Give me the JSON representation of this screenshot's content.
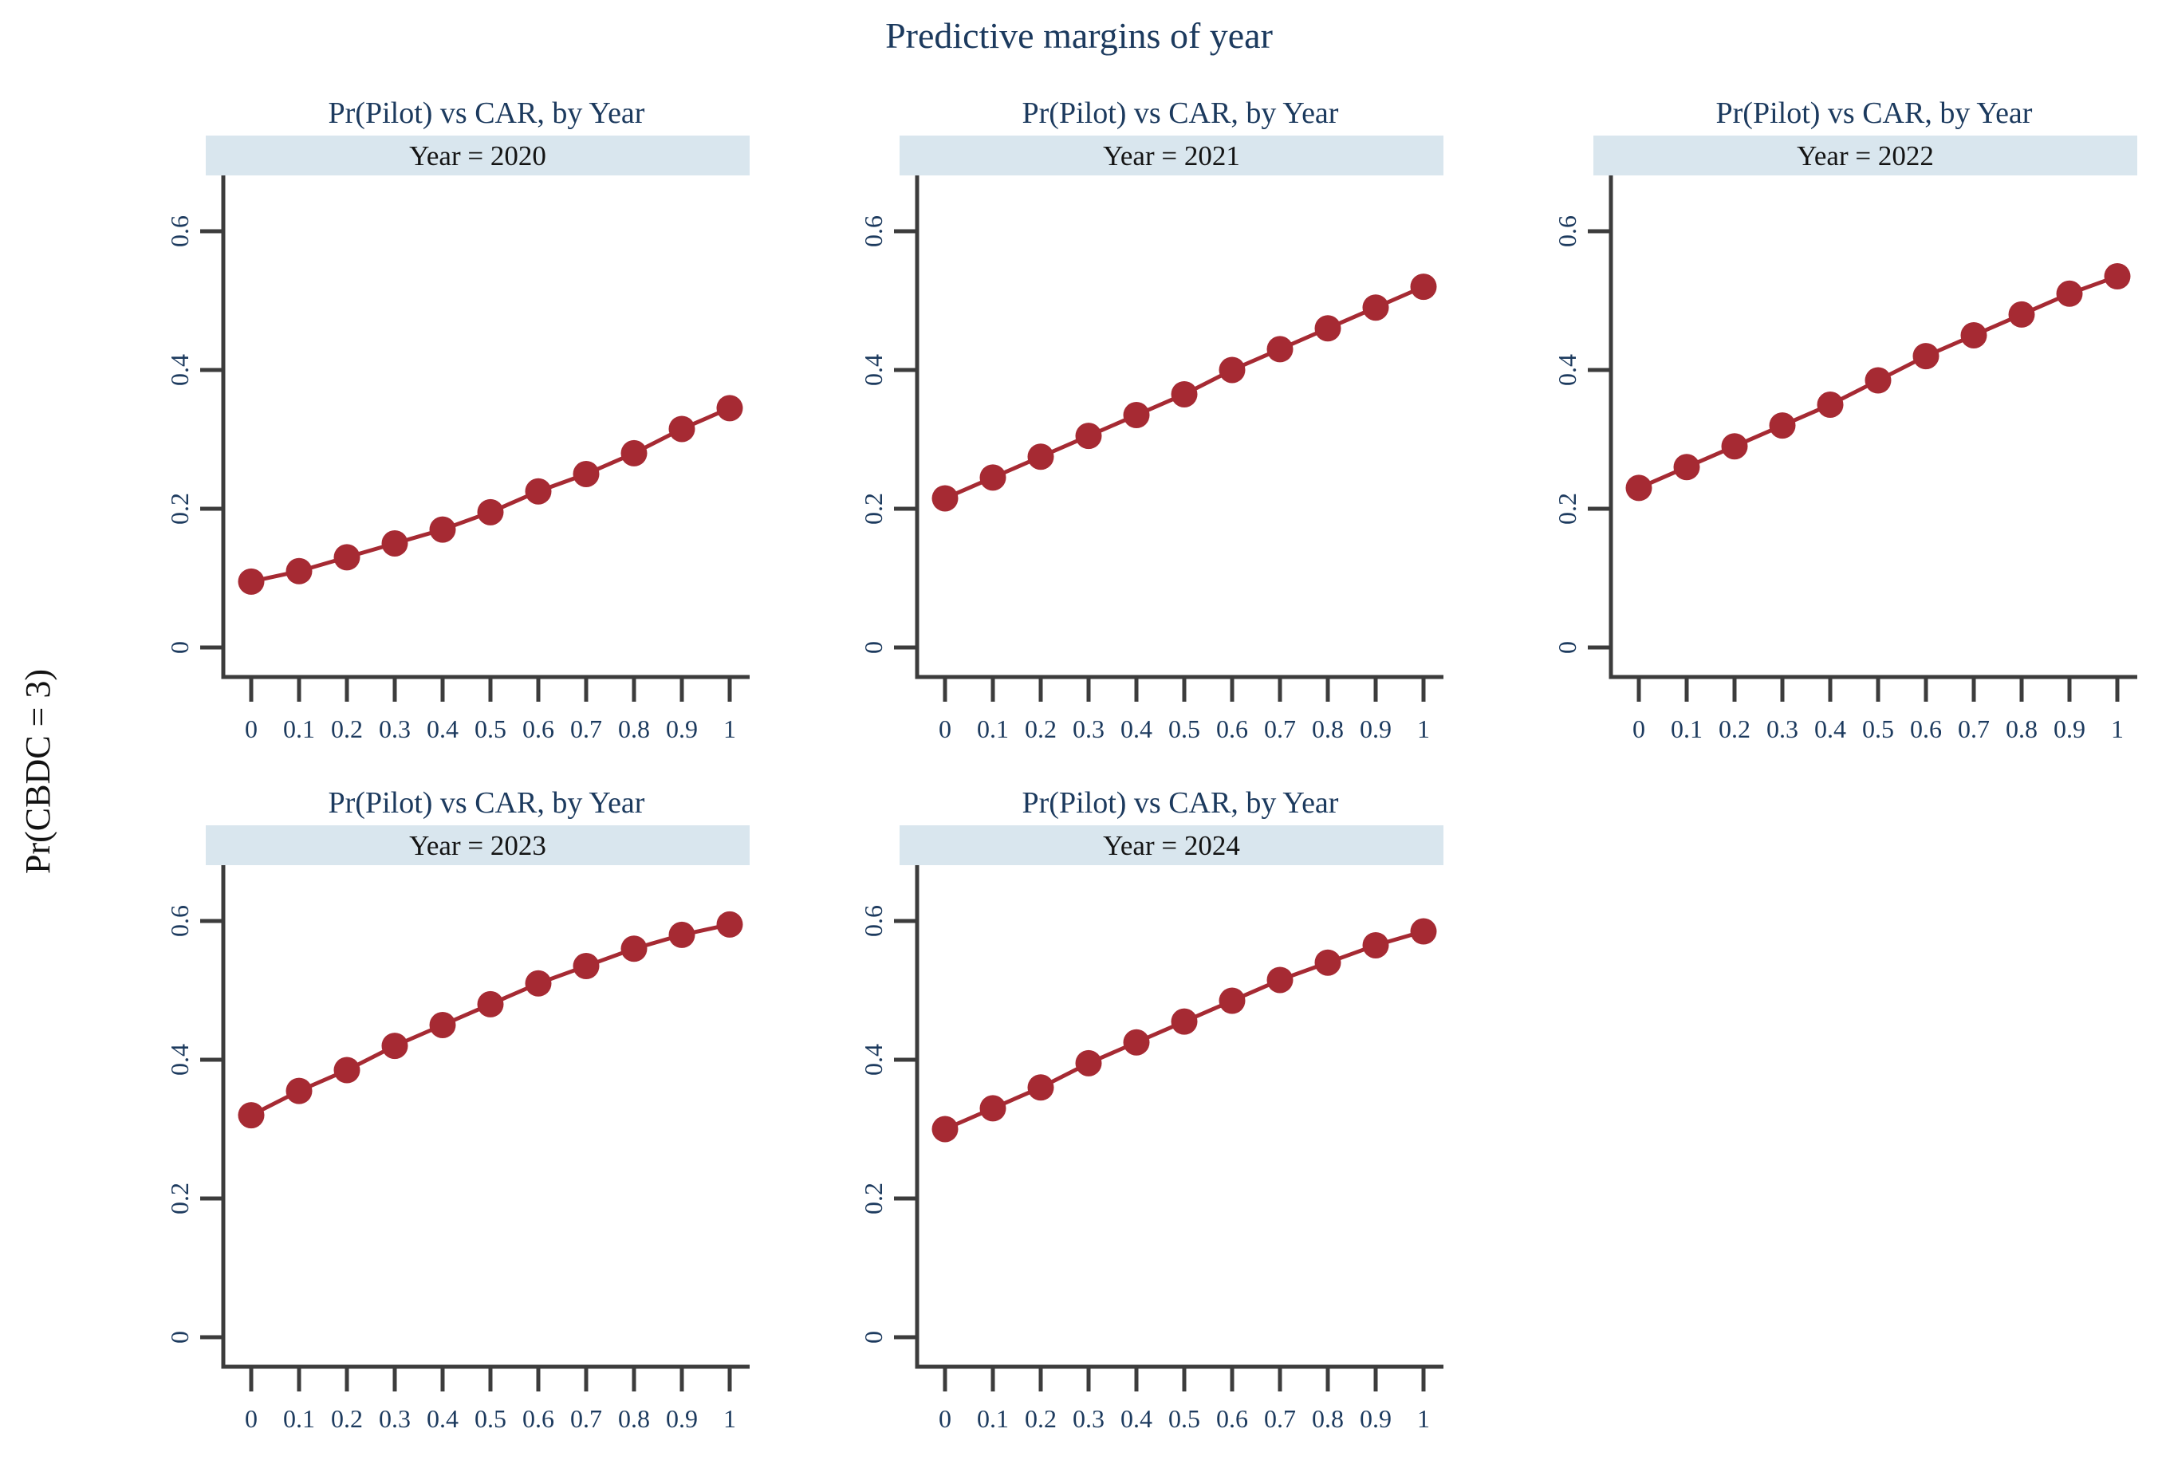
{
  "figure": {
    "title": "Predictive margins of year",
    "y_axis_label": "Pr(CBDC = 3)"
  },
  "chart_data": {
    "type": "line",
    "title": "Predictive margins of year",
    "ylabel": "Pr(CBDC = 3)",
    "xlabel": "",
    "panel_title": "Pr(Pilot) vs CAR, by Year",
    "legend": "none",
    "grid": false,
    "x": [
      0,
      0.1,
      0.2,
      0.3,
      0.4,
      0.5,
      0.6,
      0.7,
      0.8,
      0.9,
      1
    ],
    "x_tick_labels": [
      "0",
      "0.1",
      "0.2",
      "0.3",
      "0.4",
      "0.5",
      "0.6",
      "0.7",
      "0.8",
      "0.9",
      "1"
    ],
    "y_ticks": [
      0,
      0.2,
      0.4,
      0.6
    ],
    "y_tick_labels": [
      "0",
      "0.2",
      "0.4",
      "0.6"
    ],
    "ylim": [
      0,
      0.6
    ],
    "series_color": "#a62a33",
    "header_fill": "#d9e6ee",
    "axis_color": "#3c3c3c",
    "title_color": "#1c3a5e",
    "panels": [
      {
        "header": "Year = 2020",
        "values": [
          0.095,
          0.11,
          0.13,
          0.15,
          0.17,
          0.195,
          0.225,
          0.25,
          0.28,
          0.315,
          0.345
        ]
      },
      {
        "header": "Year = 2021",
        "values": [
          0.215,
          0.245,
          0.275,
          0.305,
          0.335,
          0.365,
          0.4,
          0.43,
          0.46,
          0.49,
          0.52
        ]
      },
      {
        "header": "Year = 2022",
        "values": [
          0.23,
          0.26,
          0.29,
          0.32,
          0.35,
          0.385,
          0.42,
          0.45,
          0.48,
          0.51,
          0.535
        ]
      },
      {
        "header": "Year = 2023",
        "values": [
          0.32,
          0.355,
          0.385,
          0.42,
          0.45,
          0.48,
          0.51,
          0.535,
          0.56,
          0.58,
          0.595
        ]
      },
      {
        "header": "Year = 2024",
        "values": [
          0.3,
          0.33,
          0.36,
          0.395,
          0.425,
          0.455,
          0.485,
          0.515,
          0.54,
          0.565,
          0.585
        ]
      }
    ]
  }
}
